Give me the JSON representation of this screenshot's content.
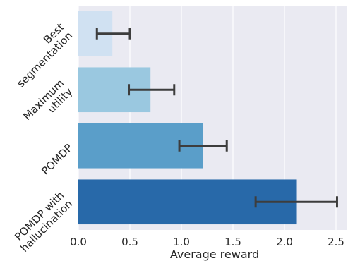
{
  "chart_data": {
    "type": "bar",
    "orientation": "horizontal",
    "style": "seaborn-darkgrid",
    "xlabel": "Average reward",
    "ylabel": "",
    "xlim": [
      0,
      2.6
    ],
    "xticks": [
      "0.0",
      "0.5",
      "1.0",
      "1.5",
      "2.0",
      "2.5"
    ],
    "grid": true,
    "background_color": "#eaeaf2",
    "categories": [
      "Best\nsegmentation",
      "Maximum\nutility",
      "POMDP",
      "POMDP with\nhallucination"
    ],
    "values": [
      0.33,
      0.7,
      1.21,
      2.12
    ],
    "error_low": [
      0.18,
      0.49,
      0.98,
      1.72
    ],
    "error_high": [
      0.5,
      0.93,
      1.44,
      2.51
    ],
    "colors": [
      "#d0e1f2",
      "#9ac8e0",
      "#5a9ec9",
      "#2869a9"
    ]
  }
}
